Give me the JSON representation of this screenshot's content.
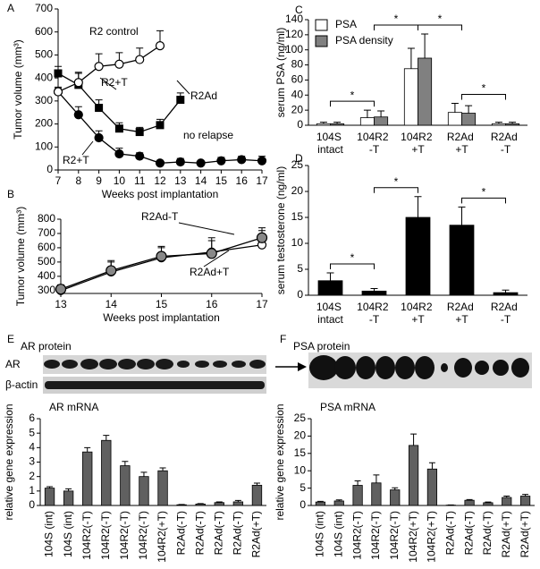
{
  "chart_data": [
    {
      "panel": "A",
      "type": "line",
      "xlabel": "Weeks post implantation",
      "ylabel": "Tumor volume (mm³)",
      "xlim": [
        7,
        17
      ],
      "xticks": [
        7,
        8,
        9,
        10,
        11,
        12,
        13,
        14,
        15,
        16,
        17
      ],
      "ylim": [
        0,
        700
      ],
      "yticks": [
        0,
        100,
        200,
        300,
        400,
        500,
        600,
        700
      ],
      "series": [
        {
          "marker": "filled-square",
          "x": [
            7,
            8,
            9,
            10,
            11,
            12,
            13
          ],
          "values": [
            420,
            370,
            270,
            180,
            165,
            195,
            305
          ],
          "errors": [
            30,
            55,
            35,
            25,
            20,
            25,
            30
          ]
        },
        {
          "marker": "filled-circle",
          "x": [
            7,
            8,
            9,
            10,
            11,
            12,
            13,
            14,
            15,
            16,
            17
          ],
          "values": [
            340,
            240,
            140,
            70,
            60,
            30,
            35,
            30,
            40,
            45,
            40
          ],
          "errors": [
            20,
            35,
            30,
            25,
            15,
            10,
            15,
            10,
            15,
            15,
            20
          ]
        },
        {
          "marker": "open-circle",
          "x": [
            7,
            8,
            9,
            10,
            11,
            12
          ],
          "values": [
            340,
            380,
            450,
            460,
            480,
            540
          ],
          "errors": [
            15,
            40,
            55,
            50,
            50,
            65
          ]
        }
      ],
      "annotations": [
        "R2 control",
        "R2+T",
        "R2Ad",
        "R2+T",
        "no relapse"
      ]
    },
    {
      "panel": "B",
      "type": "line",
      "xlabel": "Weeks post implantation",
      "ylabel": "Tumor volume (mm³)",
      "xlim": [
        13,
        17
      ],
      "xticks": [
        13,
        14,
        15,
        16,
        17
      ],
      "ylim": [
        280,
        800
      ],
      "yticks": [
        300,
        400,
        500,
        600,
        700,
        800
      ],
      "series": [
        {
          "marker": "open-circle",
          "x": [
            13,
            14,
            15,
            16,
            17
          ],
          "values": [
            300,
            430,
            530,
            570,
            620
          ],
          "errors": [
            40,
            80,
            80,
            100,
            120
          ]
        },
        {
          "marker": "gray-circle",
          "x": [
            13,
            14,
            15,
            16,
            17
          ],
          "values": [
            310,
            440,
            540,
            560,
            670
          ],
          "errors": [
            20,
            60,
            60,
            90,
            50
          ]
        }
      ],
      "annotations": [
        "R2Ad-T",
        "R2Ad+T"
      ]
    },
    {
      "panel": "C",
      "type": "bar",
      "ylabel": "serum PSA (ng/ml)",
      "categories": [
        "104S intact",
        "104R2 -T",
        "104R2 +T",
        "R2Ad +T",
        "R2Ad -T"
      ],
      "ylim": [
        0,
        140
      ],
      "yticks": [
        0,
        20,
        40,
        60,
        80,
        100,
        120,
        140
      ],
      "series": [
        {
          "name": "PSA",
          "color": "#ffffff",
          "values": [
            2,
            10,
            75,
            17,
            2
          ],
          "errors": [
            2,
            10,
            27,
            12,
            2
          ]
        },
        {
          "name": "PSA density",
          "color": "#808080",
          "values": [
            2,
            11,
            89,
            16,
            2
          ],
          "errors": [
            2,
            8,
            32,
            10,
            2
          ]
        }
      ],
      "significance": [
        {
          "from": 0,
          "to": 1,
          "label": "*"
        },
        {
          "from": 1,
          "to": 2,
          "label": "*"
        },
        {
          "from": 2,
          "to": 3,
          "label": "*"
        },
        {
          "from": 3,
          "to": 4,
          "label": "*"
        }
      ]
    },
    {
      "panel": "D",
      "type": "bar",
      "ylabel": "serum testosterone (ng/ml)",
      "categories": [
        "104S intact",
        "104R2 -T",
        "104R2 +T",
        "R2Ad +T",
        "R2Ad -T"
      ],
      "ylim": [
        0,
        25
      ],
      "yticks": [
        0,
        5,
        10,
        15,
        20,
        25
      ],
      "series": [
        {
          "color": "#000000",
          "values": [
            2.8,
            0.8,
            15,
            13.5,
            0.5
          ],
          "errors": [
            1.5,
            0.5,
            4,
            3.5,
            0.5
          ]
        }
      ],
      "significance": [
        {
          "from": 0,
          "to": 1,
          "label": "*"
        },
        {
          "from": 1,
          "to": 2,
          "label": "*"
        },
        {
          "from": 3,
          "to": 4,
          "label": "*"
        }
      ]
    },
    {
      "panel": "E",
      "type": "bar",
      "title": "AR mRNA",
      "blot_title": "AR protein",
      "blot_rows": [
        "AR",
        "β-actin"
      ],
      "ylabel": "relative gene expression",
      "categories": [
        "104S (int)",
        "104S (int)",
        "104R2(-T)",
        "104R2(-T)",
        "104R2(-T)",
        "104R2(-T)",
        "104R2(+T)",
        "R2Ad(-T)",
        "R2Ad(-T)",
        "R2Ad(-T)",
        "R2Ad(-T)",
        "R2Ad(+T)"
      ],
      "ylim": [
        0,
        6
      ],
      "yticks": [
        0,
        1,
        2,
        3,
        4,
        5,
        6
      ],
      "series": [
        {
          "color": "#606060",
          "values": [
            1.2,
            1.0,
            3.7,
            4.5,
            2.75,
            2.0,
            2.4,
            0.05,
            0.1,
            0.2,
            0.25,
            1.4
          ],
          "errors": [
            0.1,
            0.15,
            0.3,
            0.35,
            0.3,
            0.3,
            0.2,
            0.02,
            0.03,
            0.05,
            0.1,
            0.15
          ]
        }
      ]
    },
    {
      "panel": "F",
      "type": "bar",
      "title": "PSA mRNA",
      "blot_title": "PSA protein",
      "ylabel": "relative gene expression",
      "categories": [
        "104S (int)",
        "104S (int)",
        "104R2(-T)",
        "104R2(-T)",
        "104R2(-T)",
        "104R2(+T)",
        "104R2(+T)",
        "R2Ad(-T)",
        "R2Ad(-T)",
        "R2Ad(-T)",
        "R2Ad(+T)",
        "R2Ad(+T)"
      ],
      "ylim": [
        0,
        25
      ],
      "yticks": [
        0,
        5,
        10,
        15,
        20,
        25
      ],
      "series": [
        {
          "color": "#606060",
          "values": [
            1,
            1.3,
            5.8,
            6.5,
            4.5,
            17.3,
            10.5,
            0.1,
            1.5,
            0.8,
            2.3,
            2.7
          ],
          "errors": [
            0.2,
            0.3,
            1.3,
            2.3,
            0.6,
            3.3,
            1.8,
            0.05,
            0.2,
            0.2,
            0.4,
            0.5
          ]
        }
      ]
    }
  ]
}
